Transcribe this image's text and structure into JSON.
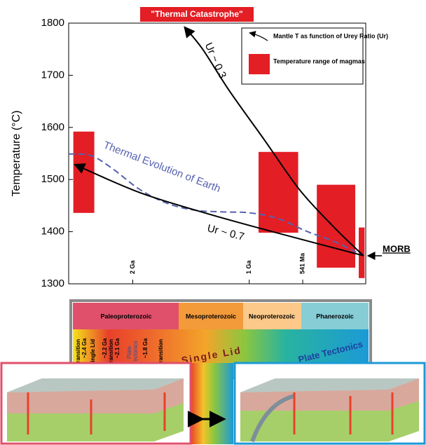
{
  "chart_data": {
    "type": "line",
    "y_label": "Temperature (°C)",
    "ylim": [
      1300,
      1800
    ],
    "yticks": [
      1300,
      1400,
      1500,
      1600,
      1700,
      1800
    ],
    "xlim": [
      2.55,
      0
    ],
    "xticks": [
      {
        "value": 2,
        "label": "2 Ga"
      },
      {
        "value": 1,
        "label": "1 Ga"
      },
      {
        "value": 0.541,
        "label": "541 Ma"
      }
    ],
    "series": [
      {
        "name": "Thermal Evolution of Earth",
        "color": "#5561b0",
        "style": "dashed",
        "x": [
          2.55,
          2.36,
          2.18,
          1.94,
          1.7,
          1.46,
          1.23,
          0.99,
          0.75,
          0.51,
          0.27,
          0.02
        ],
        "values": [
          1549,
          1546,
          1522,
          1481,
          1454,
          1441,
          1438,
          1436,
          1425,
          1401,
          1381,
          1354
        ]
      },
      {
        "name": "Ur ~ 0.3",
        "color": "#000000",
        "style": "solid",
        "x": [
          0.02,
          0.27,
          0.57,
          0.87,
          1.17,
          1.4,
          1.55
        ],
        "values": [
          1354,
          1408,
          1481,
          1576,
          1670,
          1750,
          1791
        ]
      },
      {
        "name": "Ur ~ 0.7",
        "color": "#000000",
        "style": "solid",
        "x": [
          0.02,
          0.75,
          1.35,
          1.94,
          2.49
        ],
        "values": [
          1354,
          1397,
          1434,
          1475,
          1528
        ]
      }
    ],
    "ranges": {
      "name": "Temperature range of magmas",
      "color": "#e31e25",
      "x": [
        [
          2.51,
          2.33
        ],
        [
          0.92,
          0.58
        ],
        [
          0.42,
          0.09
        ],
        [
          0.06,
          0.01
        ]
      ],
      "values": [
        [
          1436,
          1592
        ],
        [
          1398,
          1553
        ],
        [
          1331,
          1490
        ],
        [
          1311,
          1408
        ]
      ]
    },
    "legend": {
      "items": [
        "Mantle T as function of Urey Ratio (Ur)",
        "Temperature range of magmas"
      ]
    },
    "annotations": {
      "catastrophe": "\"Thermal Catastrophe\"",
      "morb": "MORB"
    }
  },
  "timeline": {
    "eons": [
      "Paleoproterozoic",
      "Mesoproterozoic",
      "Neoproterozoic",
      "Phanerozoic"
    ],
    "regimes": [
      "Transition",
      "~2.4 Ga",
      "Single Lid",
      "~2.2 Ga",
      "Transition",
      "~2.1 Ga",
      "Plate",
      "Tectonics",
      "~1.8 Ga",
      "Transition"
    ],
    "big_labels": [
      "Single Lid",
      "Plate Tectonics"
    ]
  }
}
